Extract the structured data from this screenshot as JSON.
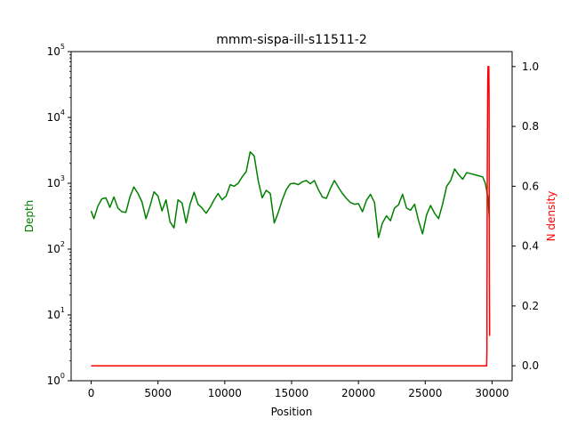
{
  "chart_data": {
    "type": "line",
    "title": "mmm-sispa-ill-s11511-2",
    "xlabel": "Position",
    "ylabel_left": "Depth",
    "ylabel_right": "N density",
    "xlim": [
      -1500,
      31500
    ],
    "x_ticks": [
      0,
      5000,
      10000,
      15000,
      20000,
      25000,
      30000
    ],
    "x_tick_labels": [
      "0",
      "5000",
      "10000",
      "15000",
      "20000",
      "25000",
      "30000"
    ],
    "y_left_scale": "log",
    "y_left_lim": [
      1,
      100000
    ],
    "y_left_ticks": [
      1,
      10,
      100,
      1000,
      10000,
      100000
    ],
    "y_left_tick_labels": [
      {
        "base": "10",
        "exp": "0"
      },
      {
        "base": "10",
        "exp": "1"
      },
      {
        "base": "10",
        "exp": "2"
      },
      {
        "base": "10",
        "exp": "3"
      },
      {
        "base": "10",
        "exp": "4"
      },
      {
        "base": "10",
        "exp": "5"
      }
    ],
    "y_right_lim": [
      -0.05,
      1.05
    ],
    "y_right_ticks": [
      0.0,
      0.2,
      0.4,
      0.6,
      0.8,
      1.0
    ],
    "y_right_tick_labels": [
      "0.0",
      "0.2",
      "0.4",
      "0.6",
      "0.8",
      "1.0"
    ],
    "grid": false,
    "colors": {
      "depth": "#008000",
      "n_density": "#ff0000"
    },
    "series": [
      {
        "axis": "left",
        "color": "#008000",
        "x": [
          0,
          200,
          500,
          800,
          1100,
          1400,
          1700,
          2000,
          2300,
          2600,
          2900,
          3200,
          3500,
          3800,
          4100,
          4400,
          4700,
          5000,
          5300,
          5600,
          5900,
          6200,
          6500,
          6800,
          7100,
          7400,
          7700,
          8000,
          8300,
          8600,
          8900,
          9200,
          9500,
          9800,
          10100,
          10400,
          10700,
          11000,
          11300,
          11600,
          11900,
          12200,
          12500,
          12800,
          13100,
          13400,
          13700,
          14000,
          14300,
          14600,
          14900,
          15200,
          15500,
          15800,
          16100,
          16400,
          16700,
          17000,
          17300,
          17600,
          17900,
          18200,
          18500,
          18800,
          19100,
          19400,
          19700,
          20000,
          20300,
          20600,
          20900,
          21200,
          21500,
          21800,
          22100,
          22400,
          22700,
          23000,
          23300,
          23600,
          23900,
          24200,
          24500,
          24800,
          25100,
          25400,
          25700,
          26000,
          26300,
          26600,
          26900,
          27200,
          27500,
          27800,
          28100,
          28400,
          28700,
          29000,
          29300,
          29500,
          29700,
          29800
        ],
        "y": [
          380,
          290,
          450,
          580,
          600,
          430,
          620,
          420,
          370,
          360,
          620,
          880,
          700,
          520,
          290,
          450,
          740,
          640,
          380,
          560,
          260,
          210,
          560,
          500,
          250,
          480,
          730,
          480,
          420,
          350,
          430,
          560,
          700,
          560,
          640,
          950,
          900,
          1000,
          1250,
          1500,
          3000,
          2600,
          1100,
          600,
          780,
          700,
          250,
          360,
          560,
          800,
          980,
          1000,
          950,
          1050,
          1100,
          980,
          1100,
          800,
          620,
          590,
          830,
          1100,
          870,
          700,
          590,
          510,
          480,
          490,
          370,
          550,
          680,
          510,
          150,
          250,
          320,
          270,
          420,
          470,
          680,
          420,
          390,
          480,
          270,
          170,
          330,
          460,
          350,
          290,
          480,
          900,
          1100,
          1650,
          1350,
          1150,
          1450,
          1400,
          1350,
          1300,
          1250,
          1000,
          600,
          280
        ]
      },
      {
        "axis": "right",
        "color": "#ff0000",
        "x": [
          0,
          29600,
          29620,
          29640,
          29660,
          29680,
          29700,
          29720,
          29740,
          29760,
          29780,
          29800,
          29820
        ],
        "y": [
          0.0,
          0.0,
          0.05,
          0.6,
          0.8,
          0.95,
          1.0,
          1.0,
          0.98,
          1.0,
          0.9,
          0.3,
          0.1
        ]
      }
    ]
  }
}
